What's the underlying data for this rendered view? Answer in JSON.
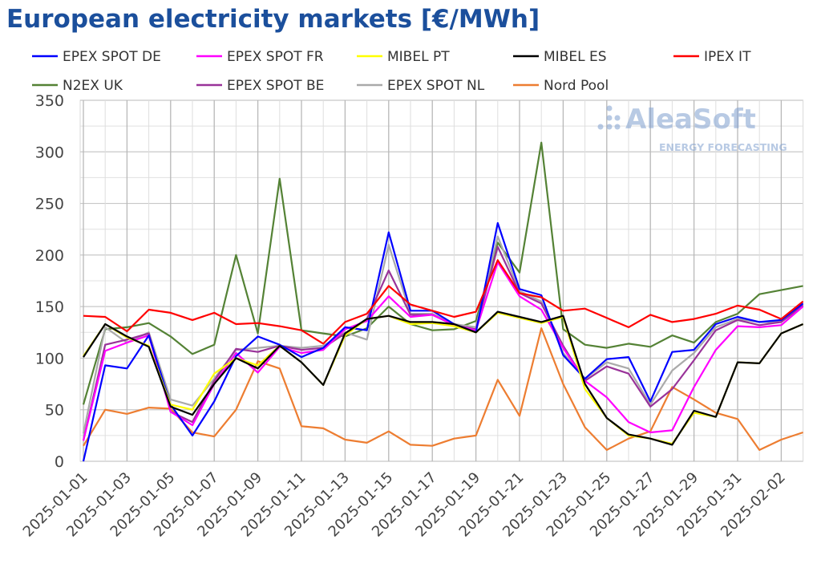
{
  "chart_data": {
    "type": "line",
    "title": "European electricity markets [€/MWh]",
    "xlabel": "",
    "ylabel": "",
    "ylim": [
      0,
      350
    ],
    "yticks": [
      0,
      50,
      100,
      150,
      200,
      250,
      300,
      350
    ],
    "grid": true,
    "legend_placement": "top",
    "watermark": {
      "brand": "AleaSoft",
      "tagline": "ENERGY FORECASTING"
    },
    "x": [
      "2025-01-01",
      "2025-01-02",
      "2025-01-03",
      "2025-01-04",
      "2025-01-05",
      "2025-01-06",
      "2025-01-07",
      "2025-01-08",
      "2025-01-09",
      "2025-01-10",
      "2025-01-11",
      "2025-01-12",
      "2025-01-13",
      "2025-01-14",
      "2025-01-15",
      "2025-01-16",
      "2025-01-17",
      "2025-01-18",
      "2025-01-19",
      "2025-01-20",
      "2025-01-21",
      "2025-01-22",
      "2025-01-23",
      "2025-01-24",
      "2025-01-25",
      "2025-01-26",
      "2025-01-27",
      "2025-01-28",
      "2025-01-29",
      "2025-01-30",
      "2025-01-31",
      "2025-02-01",
      "2025-02-02",
      "2025-02-03"
    ],
    "xtick_labels": [
      "2025-01-01",
      "2025-01-03",
      "2025-01-05",
      "2025-01-07",
      "2025-01-09",
      "2025-01-11",
      "2025-01-13",
      "2025-01-15",
      "2025-01-17",
      "2025-01-19",
      "2025-01-21",
      "2025-01-23",
      "2025-01-25",
      "2025-01-27",
      "2025-01-29",
      "2025-01-31",
      "2025-02-02"
    ],
    "series": [
      {
        "name": "EPEX SPOT DE",
        "color": "#0000ff",
        "values": [
          0,
          93,
          90,
          122,
          55,
          25,
          58,
          102,
          121,
          113,
          101,
          110,
          130,
          127,
          222,
          146,
          146,
          133,
          125,
          231,
          167,
          161,
          103,
          80,
          99,
          101,
          58,
          106,
          108,
          133,
          140,
          135,
          137,
          153
        ]
      },
      {
        "name": "EPEX SPOT FR",
        "color": "#ff00ff",
        "values": [
          20,
          107,
          115,
          122,
          48,
          35,
          75,
          105,
          86,
          111,
          105,
          108,
          128,
          136,
          160,
          140,
          142,
          132,
          127,
          193,
          160,
          147,
          110,
          78,
          62,
          38,
          28,
          30,
          72,
          108,
          131,
          130,
          132,
          150
        ]
      },
      {
        "name": "MIBEL PT",
        "color": "#ffff00",
        "values": [
          102,
          133,
          120,
          112,
          55,
          50,
          85,
          100,
          93,
          112,
          96,
          74,
          122,
          138,
          141,
          133,
          134,
          131,
          125,
          144,
          139,
          134,
          140,
          70,
          42,
          25,
          22,
          17,
          47,
          43,
          96,
          95,
          124,
          133
        ]
      },
      {
        "name": "MIBEL ES",
        "color": "#000000",
        "values": [
          101,
          133,
          121,
          111,
          53,
          45,
          75,
          100,
          90,
          112,
          96,
          74,
          124,
          138,
          141,
          135,
          135,
          133,
          125,
          145,
          140,
          135,
          141,
          75,
          42,
          26,
          22,
          16,
          49,
          43,
          96,
          95,
          124,
          133
        ]
      },
      {
        "name": "IPEX IT",
        "color": "#ff0000",
        "values": [
          141,
          140,
          126,
          147,
          144,
          137,
          144,
          133,
          134,
          131,
          127,
          114,
          135,
          143,
          170,
          152,
          146,
          140,
          145,
          195,
          163,
          159,
          146,
          148,
          139,
          130,
          142,
          135,
          138,
          143,
          151,
          147,
          138,
          155
        ]
      },
      {
        "name": "N2EX UK",
        "color": "#548235",
        "values": [
          55,
          128,
          130,
          134,
          121,
          104,
          113,
          200,
          124,
          274,
          127,
          124,
          121,
          129,
          150,
          133,
          127,
          128,
          136,
          212,
          183,
          309,
          128,
          113,
          110,
          114,
          111,
          122,
          115,
          135,
          143,
          162,
          166,
          170
        ]
      },
      {
        "name": "EPEX SPOT BE",
        "color": "#993399",
        "values": [
          20,
          113,
          118,
          124,
          48,
          38,
          78,
          109,
          106,
          112,
          108,
          110,
          124,
          138,
          185,
          142,
          142,
          132,
          128,
          208,
          163,
          153,
          112,
          78,
          92,
          85,
          53,
          70,
          98,
          127,
          137,
          132,
          135,
          151
        ]
      },
      {
        "name": "EPEX SPOT NL",
        "color": "#aaaaaa",
        "values": [
          27,
          130,
          115,
          125,
          60,
          54,
          80,
          108,
          110,
          112,
          110,
          112,
          125,
          118,
          210,
          143,
          143,
          133,
          130,
          218,
          165,
          155,
          105,
          80,
          96,
          90,
          55,
          88,
          105,
          130,
          138,
          135,
          135,
          152
        ]
      },
      {
        "name": "Nord Pool",
        "color": "#ed7d31",
        "values": [
          15,
          50,
          46,
          52,
          51,
          28,
          24,
          50,
          97,
          90,
          34,
          32,
          21,
          18,
          29,
          16,
          15,
          22,
          25,
          79,
          44,
          129,
          75,
          33,
          11,
          22,
          29,
          72,
          60,
          47,
          41,
          11,
          21,
          28
        ]
      }
    ]
  }
}
